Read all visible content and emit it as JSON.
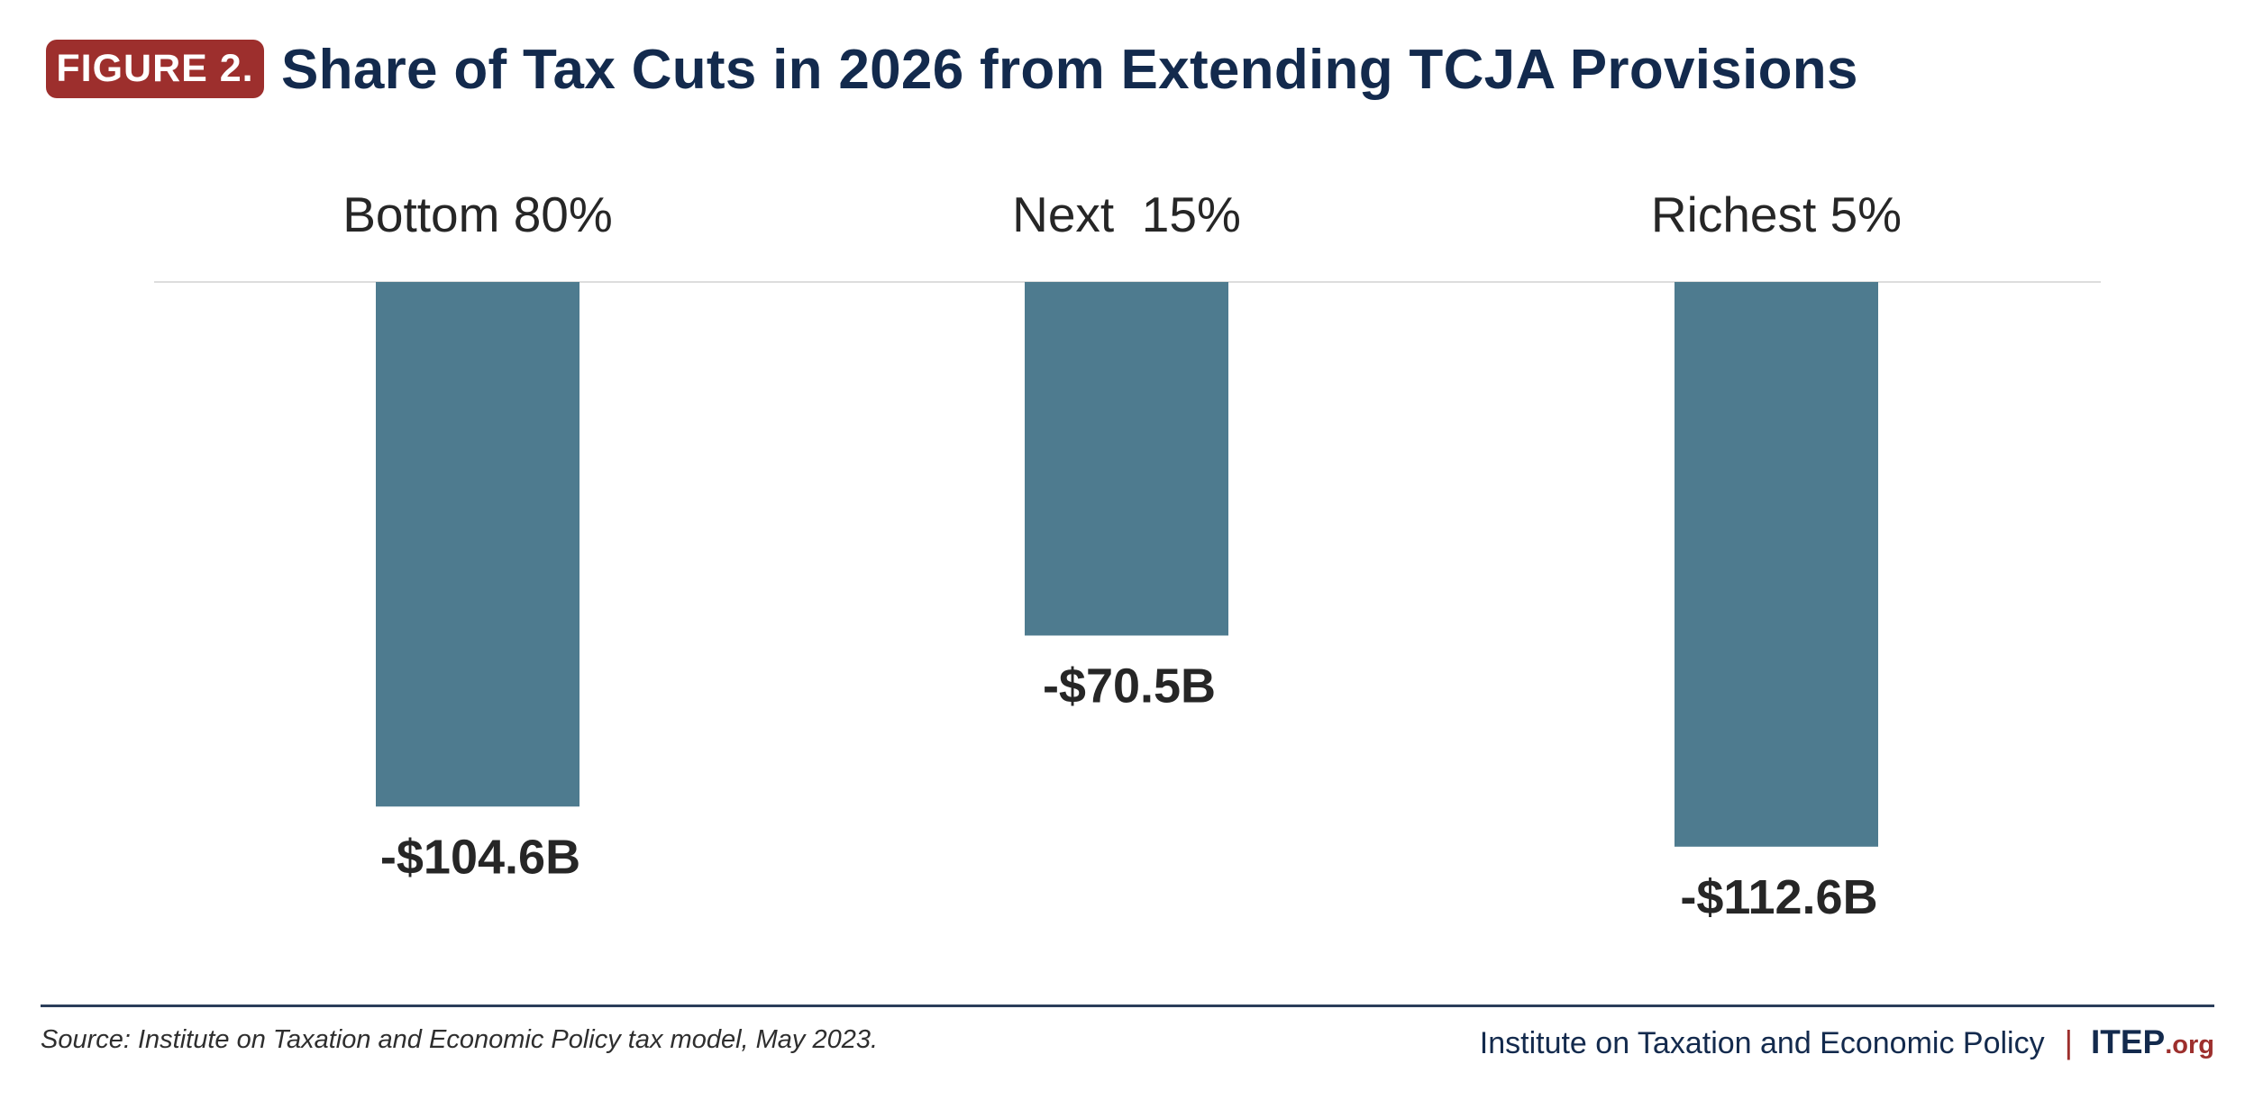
{
  "header": {
    "badge": "FIGURE 2.",
    "title": "Share of Tax Cuts in 2026 from Extending TCJA Provisions"
  },
  "colors": {
    "bar": "#4e7b8f",
    "badge": "#9d2f2d",
    "title": "#132a4d",
    "label": "#262626",
    "axis": "#dddddd",
    "footer_rule": "#2b3e5a"
  },
  "chart_data": {
    "type": "bar",
    "orientation": "vertical",
    "title": "Share of Tax Cuts in 2026 from Extending TCJA Provisions",
    "xlabel": "",
    "ylabel": "",
    "categories": [
      "Bottom 80%",
      "Next  15%",
      "Richest 5%"
    ],
    "values": [
      -104.6,
      -70.5,
      -112.6
    ],
    "value_labels": [
      "-$104.6B",
      "-$70.5B",
      "-$112.6B"
    ],
    "units": "billions of dollars",
    "category_label_position": "top",
    "value_label_position": "below-bar",
    "ylim": [
      -120,
      0
    ],
    "grid": false,
    "legend": "none"
  },
  "footer": {
    "source": "Source: Institute on Taxation and Economic Policy tax model, May 2023.",
    "org_name": "Institute on Taxation and Economic Policy",
    "separator": "|",
    "logo_main": "ITEP",
    "logo_tld": ".org"
  }
}
